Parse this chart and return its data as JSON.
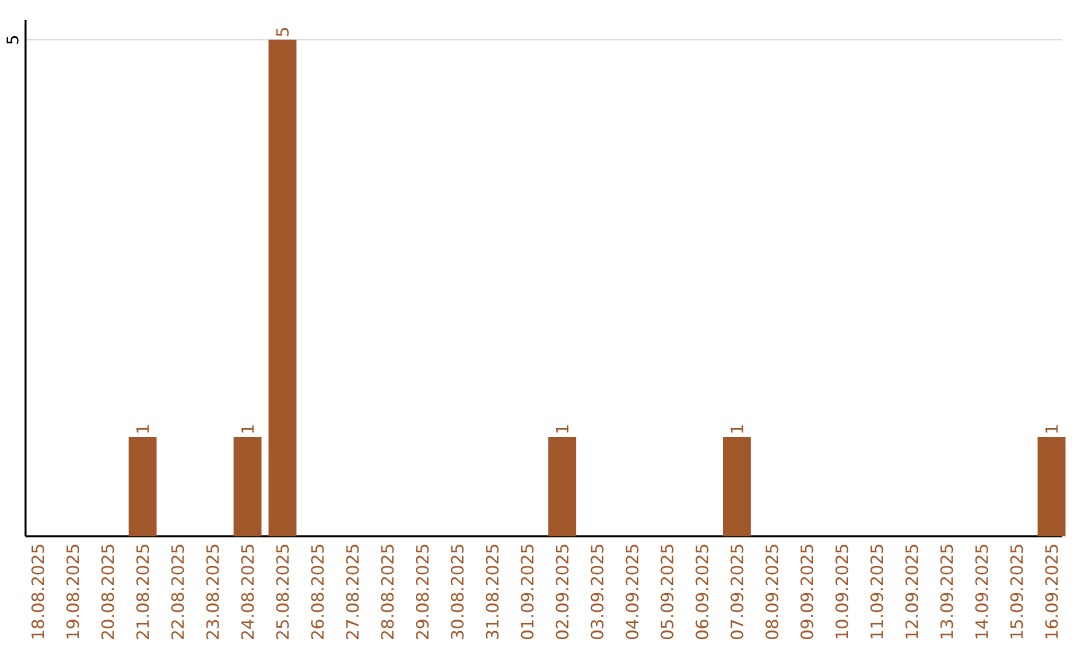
{
  "chart_data": {
    "type": "bar",
    "categories": [
      "18.08.2025",
      "19.08.2025",
      "20.08.2025",
      "21.08.2025",
      "22.08.2025",
      "23.08.2025",
      "24.08.2025",
      "25.08.2025",
      "26.08.2025",
      "27.08.2025",
      "28.08.2025",
      "29.08.2025",
      "30.08.2025",
      "31.08.2025",
      "01.09.2025",
      "02.09.2025",
      "03.09.2025",
      "04.09.2025",
      "05.09.2025",
      "06.09.2025",
      "07.09.2025",
      "08.09.2025",
      "09.09.2025",
      "10.09.2025",
      "11.09.2025",
      "12.09.2025",
      "13.09.2025",
      "14.09.2025",
      "15.09.2025",
      "16.09.2025"
    ],
    "values": [
      0,
      0,
      0,
      1,
      0,
      0,
      1,
      5,
      0,
      0,
      0,
      0,
      0,
      0,
      0,
      1,
      0,
      0,
      0,
      0,
      1,
      0,
      0,
      0,
      0,
      0,
      0,
      0,
      0,
      1
    ],
    "color": "#a0582a",
    "value_labels": [
      null,
      null,
      null,
      "1",
      null,
      null,
      "1",
      "5",
      null,
      null,
      null,
      null,
      null,
      null,
      null,
      "1",
      null,
      null,
      null,
      null,
      "1",
      null,
      null,
      null,
      null,
      null,
      null,
      null,
      null,
      "1"
    ],
    "ylim": [
      0,
      5.2
    ],
    "yticks": [
      5
    ],
    "grid": "y"
  }
}
